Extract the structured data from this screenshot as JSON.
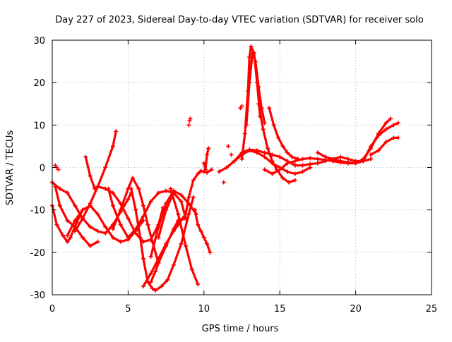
{
  "chart_data": {
    "type": "scatter",
    "title": "Day 227 of 2023, Sidereal Day-to-day VTEC variation (SDTVAR) for receiver solo",
    "xlabel": "GPS time / hours",
    "ylabel": "SDTVAR / TECUs",
    "xlim": [
      0,
      25
    ],
    "ylim": [
      -30,
      30
    ],
    "xticks": [
      0,
      5,
      10,
      15,
      20,
      25
    ],
    "yticks": [
      -30,
      -20,
      -10,
      0,
      10,
      20,
      30
    ],
    "grid": true,
    "marker": "+",
    "color": "#ff0000",
    "series": [
      {
        "name": "arc-01",
        "x": [
          0.0,
          0.5,
          1.0,
          1.5,
          2.0,
          2.5,
          3.0,
          3.5,
          4.0,
          4.5,
          5.0,
          5.2
        ],
        "y": [
          -3.5,
          -5.0,
          -6.0,
          -9.0,
          -12.0,
          -14.0,
          -15.0,
          -15.5,
          -13.5,
          -10.5,
          -7.5,
          -6.0
        ]
      },
      {
        "name": "arc-02",
        "x": [
          0.0,
          0.3,
          0.7,
          1.0,
          1.2,
          1.6,
          2.0
        ],
        "y": [
          -9.0,
          -13.5,
          -16.0,
          -17.5,
          -16.5,
          -13.0,
          -10.0
        ]
      },
      {
        "name": "arc-03",
        "x": [
          0.2,
          0.5,
          1.0,
          1.5,
          2.0,
          2.5,
          3.0
        ],
        "y": [
          -4.5,
          -9.0,
          -12.5,
          -14.0,
          -16.5,
          -18.5,
          -17.5
        ]
      },
      {
        "name": "arc-04",
        "x": [
          1.0,
          1.5,
          2.0,
          2.5,
          3.0,
          3.5,
          4.0,
          4.5,
          5.0,
          5.5,
          6.0
        ],
        "y": [
          -16.0,
          -12.5,
          -10.0,
          -9.0,
          -11.0,
          -14.0,
          -16.5,
          -17.5,
          -17.0,
          -15.0,
          -12.5
        ]
      },
      {
        "name": "arc-05",
        "x": [
          1.5,
          2.0,
          2.5,
          3.0,
          3.5,
          4.0,
          4.2
        ],
        "y": [
          -15.0,
          -12.0,
          -8.5,
          -4.5,
          0.0,
          5.0,
          8.5
        ]
      },
      {
        "name": "arc-06",
        "x": [
          2.2,
          2.5,
          2.8,
          3.0,
          3.5,
          4.0,
          4.5,
          5.0,
          5.5,
          6.0,
          6.5,
          7.0,
          7.3
        ],
        "y": [
          2.5,
          -2.0,
          -5.0,
          -4.5,
          -5.0,
          -6.0,
          -8.5,
          -12.0,
          -15.5,
          -17.5,
          -17.0,
          -13.5,
          -9.5
        ]
      },
      {
        "name": "arc-07",
        "x": [
          3.7,
          4.0,
          4.5,
          5.0,
          5.5,
          6.0,
          6.5,
          7.0,
          7.5,
          8.0
        ],
        "y": [
          -5.0,
          -9.0,
          -13.5,
          -16.5,
          -14.5,
          -11.5,
          -8.0,
          -6.0,
          -5.5,
          -6.0
        ]
      },
      {
        "name": "arc-08",
        "x": [
          4.0,
          4.5,
          5.0,
          5.3,
          5.7,
          6.0,
          6.3,
          6.6,
          7.0
        ],
        "y": [
          -14.5,
          -10.0,
          -5.0,
          -2.5,
          -5.0,
          -9.0,
          -13.5,
          -17.5,
          -22.5
        ]
      },
      {
        "name": "arc-09",
        "x": [
          5.2,
          5.5,
          5.8,
          6.0,
          6.3,
          6.6,
          6.8,
          7.2,
          7.6,
          8.0,
          8.5,
          9.0,
          9.3
        ],
        "y": [
          -5.0,
          -10.0,
          -16.5,
          -21.5,
          -27.0,
          -28.5,
          -29.0,
          -28.0,
          -26.5,
          -23.0,
          -18.0,
          -11.0,
          -7.0
        ]
      },
      {
        "name": "arc-10",
        "x": [
          6.0,
          6.5,
          7.0,
          7.5,
          8.0,
          8.3,
          8.6,
          8.8
        ],
        "y": [
          -28.0,
          -25.0,
          -21.5,
          -18.0,
          -15.0,
          -13.5,
          -12.0,
          -11.0
        ]
      },
      {
        "name": "arc-11",
        "x": [
          6.5,
          7.0,
          7.5,
          8.0,
          8.5,
          9.0,
          9.5
        ],
        "y": [
          -21.0,
          -14.0,
          -8.5,
          -5.5,
          -6.5,
          -8.5,
          -11.0
        ]
      },
      {
        "name": "arc-12",
        "x": [
          6.5,
          6.8,
          7.0,
          7.5,
          8.0,
          8.3,
          8.7
        ],
        "y": [
          -27.0,
          -24.5,
          -22.5,
          -18.5,
          -14.5,
          -12.5,
          -12.0
        ]
      },
      {
        "name": "arc-13",
        "x": [
          7.0,
          7.5,
          8.0,
          8.5,
          8.8
        ],
        "y": [
          -16.5,
          -10.0,
          -6.0,
          -8.0,
          -12.0
        ]
      },
      {
        "name": "arc-14",
        "x": [
          7.8,
          8.3,
          8.8,
          9.2,
          9.6
        ],
        "y": [
          -5.0,
          -11.0,
          -18.5,
          -24.0,
          -27.5
        ]
      },
      {
        "name": "arc-15",
        "x": [
          8.8,
          9.0,
          9.3,
          9.6,
          9.8,
          10.0,
          10.2,
          10.5
        ],
        "y": [
          -11.0,
          -7.0,
          -3.0,
          -1.5,
          -0.8,
          -1.0,
          -1.2,
          -0.5
        ]
      },
      {
        "name": "arc-16",
        "x": [
          9.4,
          9.6,
          9.8,
          10.0,
          10.2,
          10.4
        ],
        "y": [
          -10.0,
          -13.5,
          -15.0,
          -16.5,
          -18.0,
          -20.0
        ]
      },
      {
        "name": "arc-17",
        "x": [
          10.0,
          10.1,
          10.2,
          10.3
        ],
        "y": [
          1.0,
          -0.5,
          3.0,
          4.5
        ]
      },
      {
        "name": "arc-18",
        "x": [
          11.0,
          11.5,
          12.0,
          12.5,
          13.0,
          13.5,
          14.0,
          14.5,
          15.0,
          15.5,
          16.0,
          16.5,
          17.0
        ],
        "y": [
          -1.0,
          0.0,
          1.5,
          3.0,
          4.0,
          3.5,
          2.5,
          1.0,
          0.0,
          -1.0,
          -1.5,
          -1.0,
          0.0
        ]
      },
      {
        "name": "arc-19",
        "x": [
          12.0,
          12.5,
          13.0,
          13.5,
          14.0,
          14.5,
          15.0,
          15.5,
          16.0,
          16.5
        ],
        "y": [
          1.5,
          3.5,
          4.2,
          4.0,
          3.5,
          3.0,
          2.5,
          1.5,
          0.5,
          0.5
        ]
      },
      {
        "name": "arc-20",
        "x": [
          12.5,
          12.7,
          12.9,
          13.0,
          13.1,
          13.3,
          13.5,
          13.7
        ],
        "y": [
          2.0,
          8.0,
          18.0,
          26.0,
          28.5,
          27.0,
          20.0,
          12.0
        ]
      },
      {
        "name": "arc-21",
        "x": [
          12.8,
          13.0,
          13.2,
          13.4,
          13.6,
          13.8,
          14.0
        ],
        "y": [
          10.0,
          20.0,
          27.0,
          25.0,
          19.0,
          14.0,
          10.5
        ]
      },
      {
        "name": "arc-22",
        "x": [
          13.6,
          13.9,
          14.2,
          14.5,
          14.8,
          15.2,
          15.6,
          16.0
        ],
        "y": [
          15.0,
          9.0,
          4.5,
          1.5,
          -0.5,
          -2.5,
          -3.5,
          -3.0
        ]
      },
      {
        "name": "arc-23",
        "x": [
          14.3,
          14.6,
          14.9,
          15.2,
          15.5,
          15.8,
          16.2
        ],
        "y": [
          14.0,
          10.0,
          7.0,
          5.0,
          3.5,
          2.5,
          2.0
        ]
      },
      {
        "name": "arc-24",
        "x": [
          14.0,
          14.5,
          15.0,
          15.5,
          16.0,
          16.5,
          17.0,
          17.5,
          18.0,
          18.5,
          19.0,
          19.5,
          20.0,
          20.5
        ],
        "y": [
          -0.5,
          -1.5,
          -0.5,
          1.0,
          1.5,
          2.0,
          2.2,
          2.0,
          1.8,
          1.5,
          1.2,
          1.0,
          1.0,
          1.5
        ]
      },
      {
        "name": "arc-25",
        "x": [
          16.5,
          17.0,
          17.5,
          18.0,
          18.5,
          19.0,
          19.5,
          20.0,
          20.5,
          21.0
        ],
        "y": [
          0.5,
          0.8,
          1.0,
          1.5,
          2.0,
          2.5,
          2.0,
          1.5,
          1.5,
          2.0
        ]
      },
      {
        "name": "arc-26",
        "x": [
          17.5,
          18.0,
          18.5,
          19.0,
          19.5,
          20.0,
          20.5,
          21.0,
          21.5,
          22.0,
          22.3
        ],
        "y": [
          3.5,
          2.5,
          2.0,
          1.5,
          1.2,
          1.0,
          2.0,
          4.5,
          8.0,
          10.5,
          11.5
        ]
      },
      {
        "name": "arc-27",
        "x": [
          20.5,
          21.0,
          21.5,
          22.0,
          22.5,
          22.8
        ],
        "y": [
          1.5,
          5.0,
          7.5,
          9.0,
          10.0,
          10.5
        ]
      },
      {
        "name": "arc-28",
        "x": [
          21.0,
          21.5,
          22.0,
          22.5,
          22.8
        ],
        "y": [
          3.0,
          4.0,
          6.0,
          7.0,
          7.0
        ]
      }
    ],
    "scattered_points": {
      "x": [
        0.2,
        0.3,
        0.4,
        9.0,
        9.1,
        9.05,
        11.3,
        11.6,
        11.8,
        12.4,
        12.5
      ],
      "y": [
        0.5,
        0.0,
        -0.5,
        10.0,
        11.5,
        11.0,
        -3.5,
        5.0,
        3.0,
        14.0,
        14.5
      ]
    }
  }
}
